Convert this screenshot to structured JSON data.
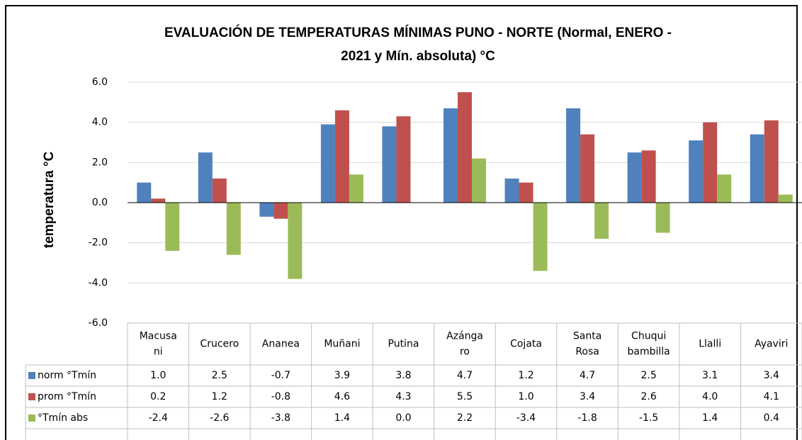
{
  "chart_data": {
    "type": "bar",
    "title": "EVALUACIÓN DE TEMPERATURAS MÍNIMAS PUNO - NORTE (Normal, ENERO -\n2021 y  Mín. absoluta) °C",
    "y_label": "temperatura °C",
    "categories": [
      "Macusa\nni",
      "Crucero",
      "Ananea",
      "Muñani",
      "Putina",
      "Azánga\nro",
      "Cojata",
      "Santa\nRosa",
      "Chuqui\nbambilla",
      "Llalli",
      "Ayaviri"
    ],
    "series": [
      {
        "name": "norm °Tmín",
        "color": "#4f81bd",
        "values": [
          1.0,
          2.5,
          -0.7,
          3.9,
          3.8,
          4.7,
          1.2,
          4.7,
          2.5,
          3.1,
          3.4
        ],
        "value_labels": [
          "1.0",
          "2.5",
          "-0.7",
          "3.9",
          "3.8",
          "4.7",
          "1.2",
          "4.7",
          "2.5",
          "3.1",
          "3.4"
        ]
      },
      {
        "name": "prom °Tmín",
        "color": "#c0504d",
        "values": [
          0.2,
          1.2,
          -0.8,
          4.6,
          4.3,
          5.5,
          1.0,
          3.4,
          2.6,
          4.0,
          4.1
        ],
        "value_labels": [
          "0.2",
          "1.2",
          "-0.8",
          "4.6",
          "4.3",
          "5.5",
          "1.0",
          "3.4",
          "2.6",
          "4.0",
          "4.1"
        ]
      },
      {
        "name": "°Tmín abs",
        "color": "#9bbb59",
        "values": [
          -2.4,
          -2.6,
          -3.8,
          1.4,
          0.0,
          2.2,
          -3.4,
          -1.8,
          -1.5,
          1.4,
          0.4
        ],
        "value_labels": [
          "-2.4",
          "-2.6",
          "-3.8",
          "1.4",
          "0.0",
          "2.2",
          "-3.4",
          "-1.8",
          "-1.5",
          "1.4",
          "0.4"
        ]
      }
    ],
    "ylim": [
      -6,
      6
    ],
    "yticks": [
      {
        "value": -6,
        "label": "-6.0"
      },
      {
        "value": -4,
        "label": "-4.0"
      },
      {
        "value": -2,
        "label": "-2.0"
      },
      {
        "value": 0,
        "label": "0.0"
      },
      {
        "value": 2,
        "label": "2.0"
      },
      {
        "value": 4,
        "label": "4.0"
      },
      {
        "value": 6,
        "label": "6.0"
      }
    ],
    "grid": true
  }
}
